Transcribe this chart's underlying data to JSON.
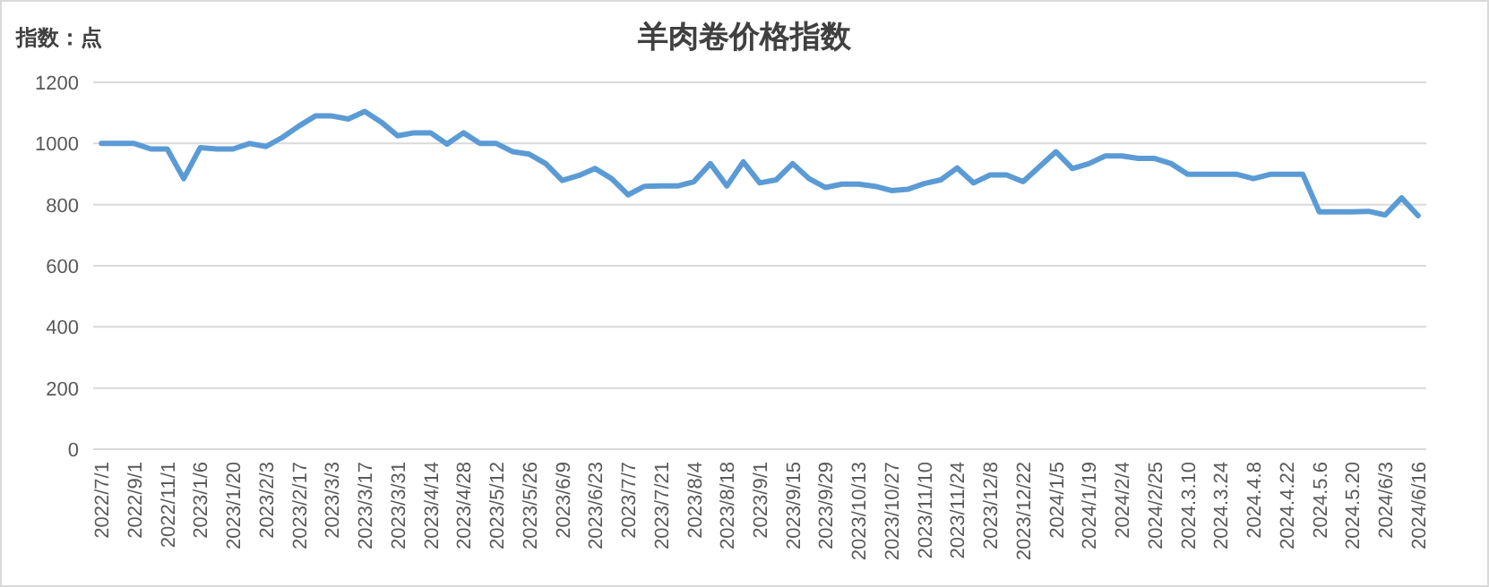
{
  "chart_data": {
    "type": "line",
    "title": "羊肉卷价格指数",
    "ylabel": "指数：点",
    "categories": [
      "2022/7/1",
      null,
      "2022/9/1",
      null,
      "2022/11/1",
      null,
      "2023/1/6",
      null,
      "2023/1/20",
      null,
      "2023/2/3",
      null,
      "2023/2/17",
      null,
      "2023/3/3",
      null,
      "2023/3/17",
      null,
      "2023/3/31",
      null,
      "2023/4/14",
      null,
      "2023/4/28",
      null,
      "2023/5/12",
      null,
      "2023/5/26",
      null,
      "2023/6/9",
      null,
      "2023/6/23",
      null,
      "2023/7/7",
      null,
      "2023/7/21",
      null,
      "2023/8/4",
      null,
      "2023/8/18",
      null,
      "2023/9/1",
      null,
      "2023/9/15",
      null,
      "2023/9/29",
      null,
      "2023/10/13",
      null,
      "2023/10/27",
      null,
      "2023/11/10",
      null,
      "2023/11/24",
      null,
      "2023/12/8",
      null,
      "2023/12/22",
      null,
      "2024/1/5",
      null,
      "2024/1/19",
      null,
      "2024/2/4",
      null,
      "2024/2/25",
      null,
      "2024.3.10",
      null,
      "2024.3.24",
      null,
      "2024.4.8",
      null,
      "2024.4.22",
      null,
      "2024.5.6",
      null,
      "2024.5.20",
      null,
      "2024/6/3",
      null,
      "2024/6/16"
    ],
    "series": [
      {
        "color": "#5b9bd5",
        "values": [
          1000,
          1000,
          1000,
          982,
          982,
          885,
          986,
          982,
          982,
          1000,
          990,
          1020,
          1057,
          1090,
          1090,
          1080,
          1105,
          1070,
          1025,
          1035,
          1035,
          998,
          1035,
          1000,
          1000,
          973,
          965,
          934,
          879,
          895,
          918,
          885,
          832,
          860,
          861,
          861,
          875,
          934,
          861,
          940,
          871,
          881,
          934,
          885,
          856,
          867,
          867,
          860,
          846,
          850,
          869,
          881,
          920,
          871,
          897,
          897,
          875,
          924,
          973,
          918,
          934,
          959,
          959,
          951,
          951,
          934,
          899,
          899,
          899,
          899,
          885,
          899,
          899,
          899,
          776,
          776,
          776,
          778,
          766,
          822,
          764
        ]
      }
    ],
    "ylim": [
      0,
      1200
    ],
    "yticks": [
      0,
      200,
      400,
      600,
      800,
      1000,
      1200
    ],
    "grid": "y",
    "marker": "none",
    "line_style": "solid"
  }
}
